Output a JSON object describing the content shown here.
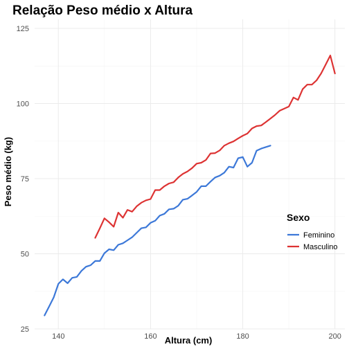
{
  "chart_data": {
    "type": "line",
    "title": "Relação Peso médio x Altura",
    "xlabel": "Altura (cm)",
    "ylabel": "Peso médio (kg)",
    "xlim": [
      134.85,
      202.15
    ],
    "ylim": [
      25,
      128
    ],
    "x_ticks": [
      140,
      160,
      180,
      200
    ],
    "y_ticks": [
      25,
      50,
      75,
      100,
      125
    ],
    "grid": true,
    "legend": {
      "title": "Sexo",
      "placement": "right"
    },
    "series": [
      {
        "name": "Feminino",
        "color": "#3c78d8",
        "x": [
          137,
          138,
          139,
          140,
          141,
          142,
          143,
          144,
          145,
          146,
          147,
          148,
          149,
          150,
          151,
          152,
          153,
          154,
          155,
          156,
          157,
          158,
          159,
          160,
          161,
          162,
          163,
          164,
          165,
          166,
          167,
          168,
          169,
          170,
          171,
          172,
          173,
          174,
          175,
          176,
          177,
          178,
          179,
          180,
          181,
          182,
          183,
          184,
          185,
          186
        ],
        "y": [
          29.5,
          32.5,
          35.5,
          40.0,
          41.5,
          40.2,
          42.0,
          42.3,
          44.3,
          45.7,
          46.2,
          47.6,
          47.6,
          50.2,
          51.5,
          51.2,
          53.0,
          53.5,
          54.5,
          55.5,
          57.0,
          58.5,
          58.8,
          60.3,
          61.0,
          62.7,
          63.3,
          64.8,
          65.0,
          66.0,
          68.0,
          68.3,
          69.4,
          70.6,
          72.5,
          72.5,
          74.0,
          75.4,
          76.0,
          77.0,
          79.0,
          78.7,
          81.8,
          82.2,
          79.0,
          80.3,
          84.3,
          85.0,
          85.5,
          86.0
        ]
      },
      {
        "name": "Masculino",
        "color": "#dd3333",
        "x": [
          148,
          149,
          150,
          151,
          152,
          153,
          154,
          155,
          156,
          157,
          158,
          159,
          160,
          161,
          162,
          163,
          164,
          165,
          166,
          167,
          168,
          169,
          170,
          171,
          172,
          173,
          174,
          175,
          176,
          177,
          178,
          179,
          180,
          181,
          182,
          183,
          184,
          185,
          186,
          187,
          188,
          189,
          190,
          191,
          192,
          193,
          194,
          195,
          196,
          197,
          198,
          199,
          200
        ],
        "y": [
          55.3,
          58.5,
          61.8,
          60.5,
          59.0,
          63.7,
          62.0,
          64.6,
          64.0,
          65.8,
          67.0,
          67.8,
          68.2,
          71.2,
          71.2,
          72.5,
          73.4,
          73.8,
          75.4,
          76.6,
          77.4,
          78.5,
          80.0,
          80.3,
          81.2,
          83.4,
          83.5,
          84.4,
          86.0,
          86.8,
          87.4,
          88.4,
          89.3,
          90.0,
          91.7,
          92.5,
          92.7,
          93.8,
          95.0,
          96.2,
          97.6,
          98.3,
          99.0,
          102.0,
          101.2,
          104.8,
          106.3,
          106.3,
          107.7,
          110.0,
          113.0,
          116.0,
          110.0
        ]
      }
    ]
  }
}
